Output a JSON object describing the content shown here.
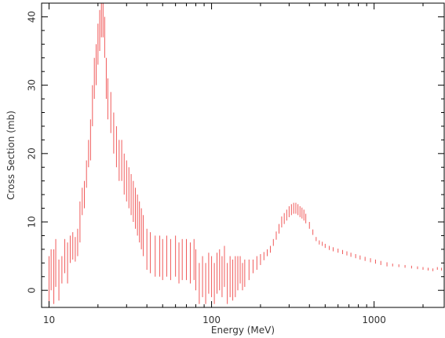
{
  "chart_data": {
    "type": "scatter",
    "title": "",
    "xlabel": "Energy (MeV)",
    "ylabel": "Cross Section (mb)",
    "x_scale": "log",
    "xlim": [
      9,
      2700
    ],
    "ylim": [
      -2.5,
      42
    ],
    "grid": false,
    "series_color": "#f05a5a",
    "axis_color": "#000000",
    "x_ticks": [
      {
        "value": 10,
        "label": "10"
      },
      {
        "value": 100,
        "label": "100"
      },
      {
        "value": 1000,
        "label": "1000"
      }
    ],
    "y_ticks": [
      {
        "value": 0,
        "label": "0"
      },
      {
        "value": 10,
        "label": "10"
      },
      {
        "value": 20,
        "label": "20"
      },
      {
        "value": 30,
        "label": "30"
      },
      {
        "value": 40,
        "label": "40"
      }
    ],
    "series": [
      {
        "style": "error-bars",
        "points": [
          [
            10.0,
            1.0,
            4.0
          ],
          [
            10.3,
            3.0,
            3.0
          ],
          [
            10.7,
            2.0,
            4.0
          ],
          [
            11.0,
            4.0,
            3.5
          ],
          [
            11.5,
            1.5,
            3.0
          ],
          [
            12.0,
            3.0,
            2.0
          ],
          [
            12.5,
            5.0,
            2.5
          ],
          [
            13.0,
            4.0,
            3.0
          ],
          [
            13.5,
            6.0,
            2.0
          ],
          [
            14.0,
            6.5,
            2.0
          ],
          [
            14.5,
            6.0,
            1.8
          ],
          [
            15.0,
            7.0,
            2.0
          ],
          [
            15.5,
            10.0,
            3.0
          ],
          [
            16.0,
            13.0,
            2.0
          ],
          [
            16.5,
            14.0,
            2.0
          ],
          [
            17.0,
            17.0,
            2.0
          ],
          [
            17.5,
            20.0,
            2.0
          ],
          [
            18.0,
            22.0,
            3.0
          ],
          [
            18.5,
            27.0,
            3.0
          ],
          [
            19.0,
            31.0,
            3.0
          ],
          [
            19.5,
            33.0,
            3.0
          ],
          [
            20.0,
            36.0,
            3.0
          ],
          [
            20.5,
            38.0,
            3.0
          ],
          [
            21.0,
            40.0,
            3.0
          ],
          [
            21.5,
            40.0,
            3.0
          ],
          [
            22.0,
            37.0,
            3.0
          ],
          [
            22.5,
            31.0,
            3.0
          ],
          [
            23.0,
            28.0,
            3.0
          ],
          [
            24.0,
            26.0,
            3.0
          ],
          [
            25.0,
            23.0,
            3.0
          ],
          [
            26.0,
            21.0,
            3.0
          ],
          [
            27.0,
            19.0,
            3.0
          ],
          [
            28.0,
            19.0,
            3.0
          ],
          [
            29.0,
            17.0,
            3.0
          ],
          [
            30.0,
            16.0,
            3.0
          ],
          [
            31.0,
            15.0,
            3.0
          ],
          [
            32.0,
            14.0,
            3.0
          ],
          [
            33.0,
            13.0,
            3.0
          ],
          [
            34.0,
            12.0,
            3.0
          ],
          [
            35.0,
            11.0,
            3.0
          ],
          [
            36.0,
            10.0,
            3.0
          ],
          [
            37.0,
            9.0,
            3.0
          ],
          [
            38.0,
            8.0,
            3.0
          ],
          [
            40.0,
            6.0,
            3.0
          ],
          [
            42.0,
            5.5,
            3.0
          ],
          [
            45.0,
            5.0,
            3.0
          ],
          [
            48.0,
            5.0,
            3.0
          ],
          [
            50.0,
            4.5,
            3.0
          ],
          [
            53.0,
            5.0,
            3.0
          ],
          [
            56.0,
            4.5,
            3.0
          ],
          [
            60.0,
            5.0,
            3.0
          ],
          [
            63.0,
            4.0,
            3.0
          ],
          [
            66.0,
            4.5,
            3.0
          ],
          [
            70.0,
            4.5,
            3.0
          ],
          [
            74.0,
            4.0,
            3.0
          ],
          [
            78.0,
            4.5,
            3.0
          ],
          [
            80.0,
            3.0,
            3.0
          ],
          [
            84.0,
            1.0,
            3.0
          ],
          [
            88.0,
            2.0,
            3.0
          ],
          [
            92.0,
            1.0,
            3.0
          ],
          [
            96.0,
            2.5,
            3.0
          ],
          [
            100.0,
            2.0,
            3.0
          ],
          [
            104.0,
            1.0,
            3.0
          ],
          [
            108.0,
            2.5,
            3.0
          ],
          [
            112.0,
            3.0,
            3.0
          ],
          [
            116.0,
            2.0,
            3.0
          ],
          [
            120.0,
            3.5,
            3.0
          ],
          [
            125.0,
            1.0,
            3.0
          ],
          [
            130.0,
            2.0,
            3.0
          ],
          [
            135.0,
            1.5,
            3.0
          ],
          [
            140.0,
            2.0,
            3.0
          ],
          [
            145.0,
            2.5,
            2.5
          ],
          [
            150.0,
            3.0,
            2.0
          ],
          [
            155.0,
            2.0,
            2.0
          ],
          [
            160.0,
            2.5,
            2.0
          ],
          [
            170.0,
            3.0,
            1.5
          ],
          [
            180.0,
            3.5,
            1.0
          ],
          [
            190.0,
            4.0,
            1.0
          ],
          [
            200.0,
            4.5,
            0.8
          ],
          [
            210.0,
            5.0,
            0.6
          ],
          [
            220.0,
            5.5,
            0.5
          ],
          [
            230.0,
            6.0,
            0.5
          ],
          [
            240.0,
            7.0,
            0.5
          ],
          [
            250.0,
            8.0,
            0.6
          ],
          [
            260.0,
            9.0,
            0.7
          ],
          [
            270.0,
            10.0,
            0.8
          ],
          [
            280.0,
            10.5,
            0.8
          ],
          [
            290.0,
            11.0,
            0.8
          ],
          [
            300.0,
            11.5,
            0.8
          ],
          [
            310.0,
            11.8,
            0.8
          ],
          [
            320.0,
            12.0,
            0.8
          ],
          [
            330.0,
            12.0,
            0.8
          ],
          [
            340.0,
            11.8,
            0.8
          ],
          [
            350.0,
            11.5,
            0.8
          ],
          [
            360.0,
            11.3,
            0.8
          ],
          [
            370.0,
            11.0,
            0.8
          ],
          [
            380.0,
            10.5,
            0.7
          ],
          [
            400.0,
            9.5,
            0.5
          ],
          [
            420.0,
            8.5,
            0.4
          ],
          [
            440.0,
            7.5,
            0.3
          ],
          [
            460.0,
            7.0,
            0.3
          ],
          [
            480.0,
            6.8,
            0.3
          ],
          [
            500.0,
            6.5,
            0.3
          ],
          [
            530.0,
            6.2,
            0.3
          ],
          [
            560.0,
            6.0,
            0.3
          ],
          [
            600.0,
            5.8,
            0.3
          ],
          [
            640.0,
            5.6,
            0.3
          ],
          [
            680.0,
            5.4,
            0.3
          ],
          [
            720.0,
            5.2,
            0.3
          ],
          [
            770.0,
            5.0,
            0.3
          ],
          [
            820.0,
            4.8,
            0.3
          ],
          [
            880.0,
            4.6,
            0.3
          ],
          [
            950.0,
            4.4,
            0.3
          ],
          [
            1020.0,
            4.2,
            0.3
          ],
          [
            1100.0,
            4.0,
            0.3
          ],
          [
            1200.0,
            3.8,
            0.3
          ],
          [
            1300.0,
            3.7,
            0.2
          ],
          [
            1420.0,
            3.6,
            0.2
          ],
          [
            1550.0,
            3.5,
            0.2
          ],
          [
            1700.0,
            3.4,
            0.2
          ],
          [
            1850.0,
            3.3,
            0.2
          ],
          [
            2000.0,
            3.2,
            0.2
          ],
          [
            2150.0,
            3.1,
            0.2
          ],
          [
            2300.0,
            3.0,
            0.2
          ],
          [
            2450.0,
            3.2,
            0.2
          ],
          [
            2600.0,
            3.1,
            0.2
          ]
        ]
      }
    ]
  }
}
